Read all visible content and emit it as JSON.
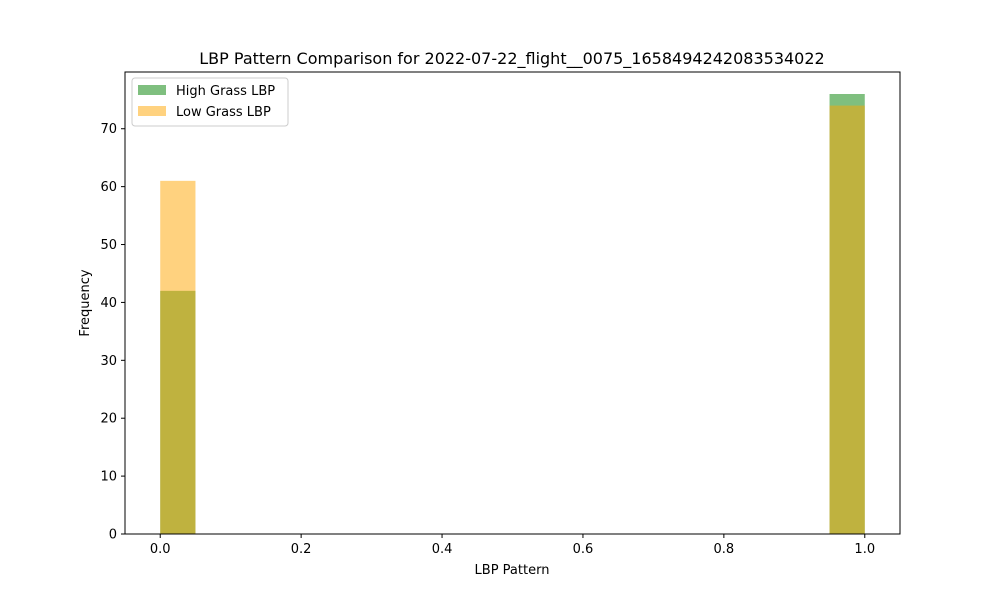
{
  "chart_data": {
    "type": "bar",
    "title": "LBP Pattern Comparison for 2022-07-22_flight__0075_1658494242083534022",
    "xlabel": "LBP Pattern",
    "ylabel": "Frequency",
    "xlim": [
      -0.05,
      1.05
    ],
    "ylim": [
      0,
      79.8
    ],
    "x_ticks": [
      0.0,
      0.2,
      0.4,
      0.6,
      0.8,
      1.0
    ],
    "x_tick_labels": [
      "0.0",
      "0.2",
      "0.4",
      "0.6",
      "0.8",
      "1.0"
    ],
    "y_ticks": [
      0,
      10,
      20,
      30,
      40,
      50,
      60,
      70
    ],
    "y_tick_labels": [
      "0",
      "10",
      "20",
      "30",
      "40",
      "50",
      "60",
      "70"
    ],
    "bin_width": 0.05,
    "grid": false,
    "legend_position": "top-left",
    "series": [
      {
        "name": "High Grass LBP",
        "color": "#008000",
        "opacity": 0.5,
        "bins": [
          {
            "start": 0.0,
            "end": 0.05,
            "value": 42
          },
          {
            "start": 0.95,
            "end": 1.0,
            "value": 76
          }
        ]
      },
      {
        "name": "Low Grass LBP",
        "color": "#FFA500",
        "opacity": 0.5,
        "bins": [
          {
            "start": 0.0,
            "end": 0.05,
            "value": 61
          },
          {
            "start": 0.95,
            "end": 1.0,
            "value": 74
          }
        ]
      }
    ]
  }
}
